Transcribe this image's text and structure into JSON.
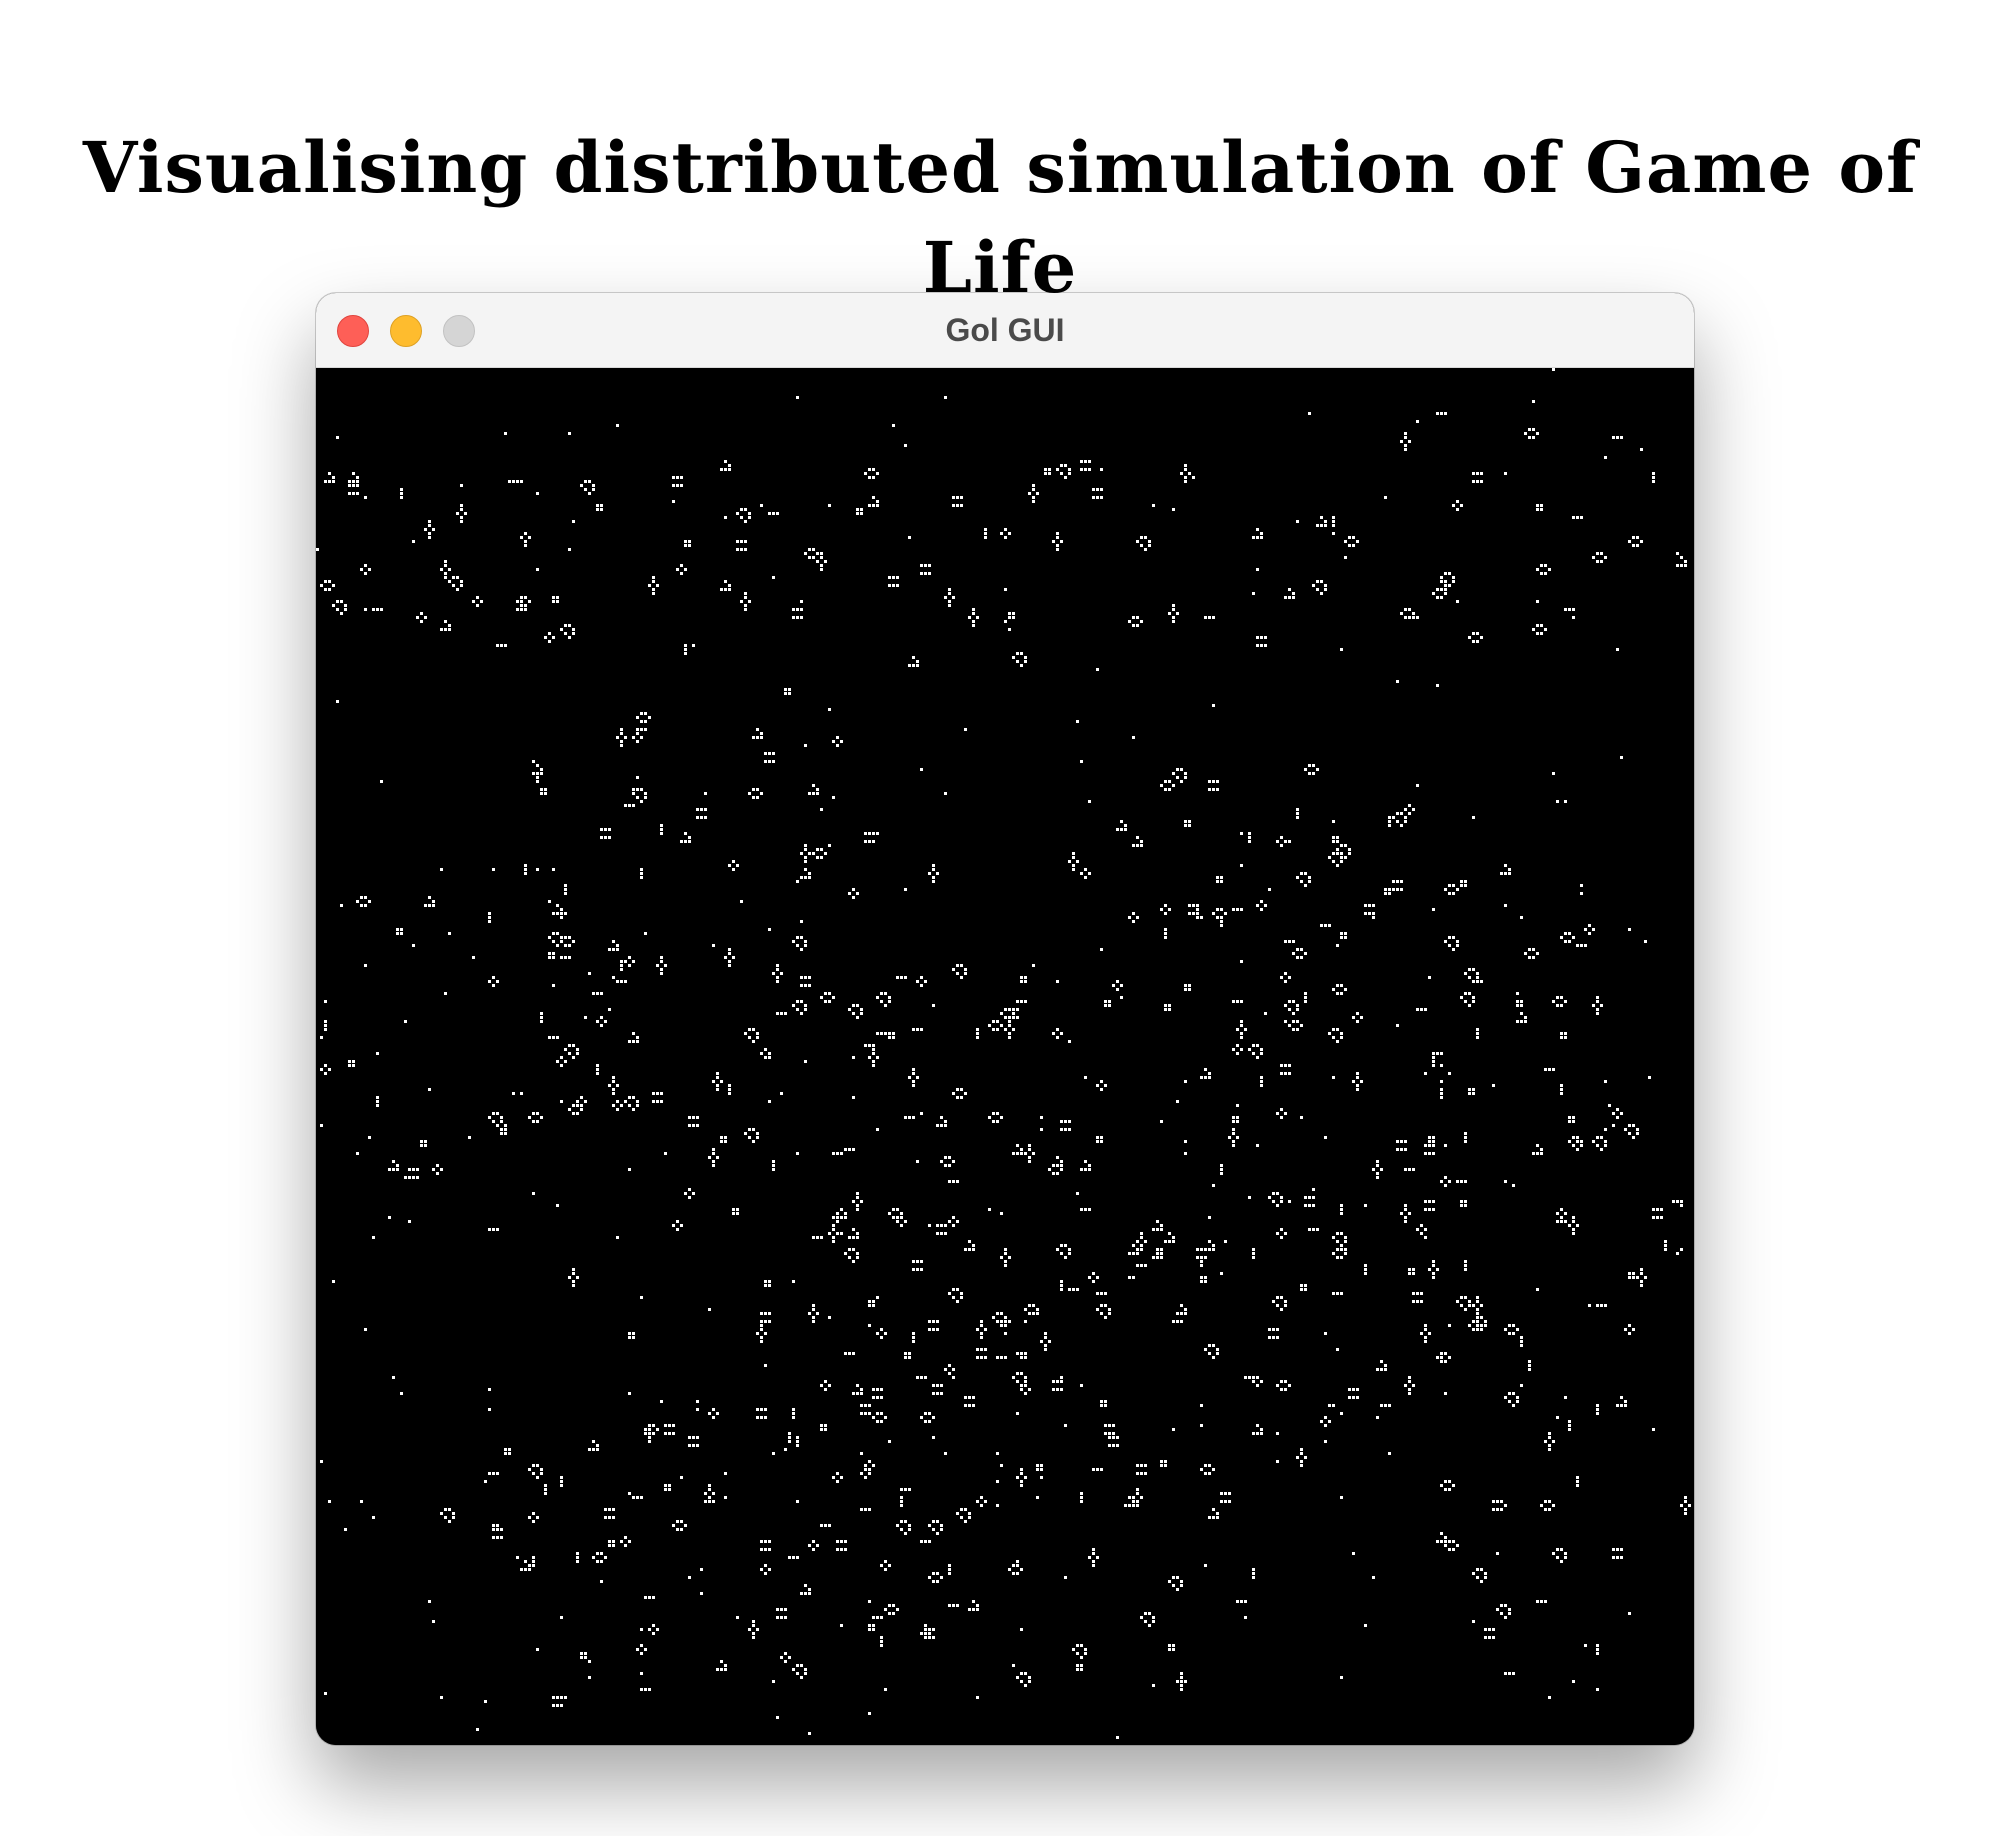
{
  "page": {
    "heading": "Visualising distributed simulation of Game of Life"
  },
  "window": {
    "title": "Gol GUI",
    "controls": [
      "close",
      "minimize",
      "zoom"
    ]
  },
  "board": {
    "alive_color": "#ffffff",
    "dead_color": "#000000"
  },
  "colors": {
    "close": "#fe5f57",
    "minimize": "#febc2e",
    "zoom": "#d5d5d5",
    "titlebar": "#f4f4f4"
  }
}
